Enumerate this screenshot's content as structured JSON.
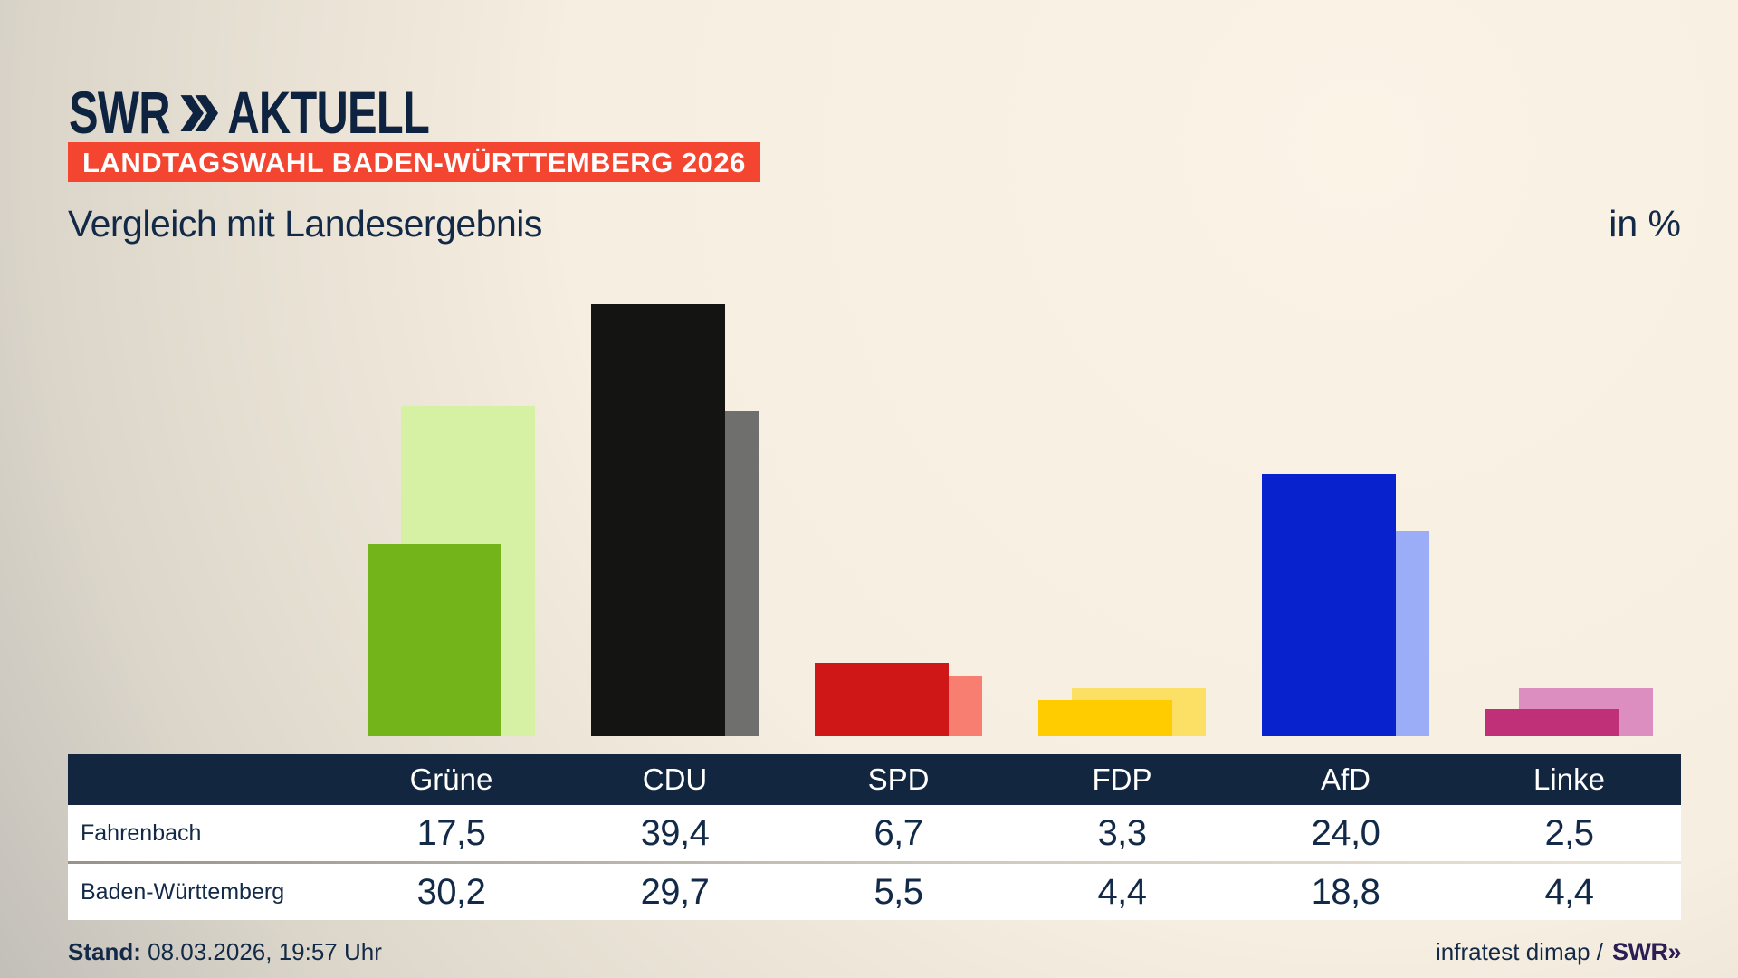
{
  "brand": {
    "swr": "SWR",
    "aktuell": "AKTUELL",
    "chevrons_icon": "double-chevron-right"
  },
  "header": {
    "badge": "LANDTAGSWAHL BADEN-WÜRTTEMBERG 2026",
    "title": "Vergleich mit Landesergebnis",
    "unit_label": "in %"
  },
  "chart_data": {
    "type": "bar",
    "title": "Vergleich mit Landesergebnis",
    "unit": "%",
    "categories": [
      "Grüne",
      "CDU",
      "SPD",
      "FDP",
      "AfD",
      "Linke"
    ],
    "series": [
      {
        "name": "Fahrenbach",
        "values": [
          17.5,
          39.4,
          6.7,
          3.3,
          24.0,
          2.5
        ]
      },
      {
        "name": "Baden-Württemberg",
        "values": [
          30.2,
          29.7,
          5.5,
          4.4,
          18.8,
          4.4
        ]
      }
    ],
    "party_colors": [
      {
        "party": "Grüne",
        "front": "#72b41a",
        "back": "#d6f0a4"
      },
      {
        "party": "CDU",
        "front": "#141413",
        "back": "#6f6f6e"
      },
      {
        "party": "SPD",
        "front": "#d01717",
        "back": "#f87e72"
      },
      {
        "party": "FDP",
        "front": "#ffcc00",
        "back": "#fbe065"
      },
      {
        "party": "AfD",
        "front": "#0823cd",
        "back": "#9cadf8"
      },
      {
        "party": "Linke",
        "front": "#bf3078",
        "back": "#dc8ec0"
      }
    ],
    "ylim": [
      0,
      40
    ],
    "grid": false,
    "axes_visible": false,
    "legend_position": "table-below-chart",
    "value_label_format": "comma-decimal"
  },
  "table": {
    "header": [
      "Grüne",
      "CDU",
      "SPD",
      "FDP",
      "AfD",
      "Linke"
    ],
    "rows": [
      {
        "label": "Fahrenbach",
        "values": [
          "17,5",
          "39,4",
          "6,7",
          "3,3",
          "24,0",
          "2,5"
        ]
      },
      {
        "label": "Baden-Württemberg",
        "values": [
          "30,2",
          "29,7",
          "5,5",
          "4,4",
          "18,8",
          "4,4"
        ]
      }
    ]
  },
  "footer": {
    "stand_label": "Stand:",
    "stand_value": "08.03.2026, 19:57 Uhr",
    "source_text": "infratest dimap /",
    "source_brand": "SWR»"
  },
  "colors": {
    "background_top_right": "#faf3e6",
    "background_bottom_left": "#c3c0ba",
    "navy_text": "#122a47",
    "logo_navy": "#0e2340",
    "badge_red": "#f3452f",
    "table_header_bg": "#132640",
    "row_bg": "#ffffff",
    "source_brand_purple": "#2b1e55"
  }
}
